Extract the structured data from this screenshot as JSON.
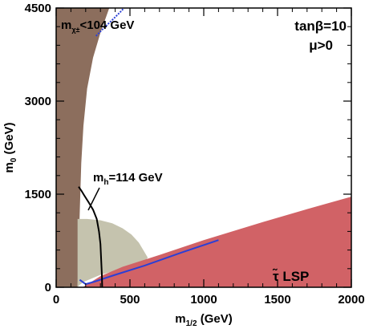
{
  "chart_data": {
    "type": "area",
    "title": "",
    "xlabel": "m",
    "xlabel_sub": "1/2",
    "xlabel_unit": " (GeV)",
    "ylabel": "m",
    "ylabel_sub": "0",
    "ylabel_unit": " (GeV)",
    "xlim": [
      0,
      2000
    ],
    "ylim": [
      0,
      4500
    ],
    "x_ticks": [
      0,
      500,
      1000,
      1500,
      2000
    ],
    "y_ticks": [
      0,
      1500,
      3000,
      4500
    ],
    "grid": false,
    "colors": {
      "chargino_excluded": "#8c6e5d",
      "higgs_excluded": "#c5c3ae",
      "stau_lsp": "#d16266",
      "wmap_band": "#2b3fd6",
      "mh_line": "#000000",
      "frame": "#000000"
    },
    "regions": [
      {
        "name": "chargino_excluded",
        "boundary": [
          [
            0,
            0
          ],
          [
            145,
            0
          ],
          [
            150,
            400
          ],
          [
            160,
            1200
          ],
          [
            170,
            2000
          ],
          [
            185,
            2600
          ],
          [
            210,
            3200
          ],
          [
            250,
            3700
          ],
          [
            300,
            4100
          ],
          [
            360,
            4500
          ],
          [
            0,
            4500
          ]
        ]
      },
      {
        "name": "higgs_excluded",
        "boundary": [
          [
            145,
            0
          ],
          [
            145,
            1100
          ],
          [
            210,
            1100
          ],
          [
            300,
            1080
          ],
          [
            380,
            1030
          ],
          [
            450,
            950
          ],
          [
            510,
            850
          ],
          [
            560,
            720
          ],
          [
            590,
            600
          ],
          [
            620,
            480
          ],
          [
            600,
            380
          ],
          [
            450,
            300
          ],
          [
            300,
            200
          ],
          [
            190,
            90
          ],
          [
            160,
            40
          ]
        ]
      },
      {
        "name": "stau_lsp",
        "boundary": [
          [
            180,
            0
          ],
          [
            2000,
            0
          ],
          [
            2000,
            1460
          ],
          [
            1700,
            1260
          ],
          [
            1400,
            1050
          ],
          [
            1000,
            760
          ],
          [
            700,
            520
          ],
          [
            450,
            330
          ],
          [
            300,
            180
          ],
          [
            220,
            60
          ]
        ]
      }
    ],
    "lines": [
      {
        "name": "wmap_band_lower",
        "points": [
          [
            160,
            120
          ],
          [
            200,
            50
          ],
          [
            260,
            90
          ],
          [
            400,
            200
          ],
          [
            600,
            350
          ],
          [
            850,
            560
          ],
          [
            1100,
            760
          ]
        ]
      },
      {
        "name": "wmap_band_upper",
        "points": [
          [
            270,
            4050
          ],
          [
            320,
            4170
          ],
          [
            390,
            4330
          ],
          [
            440,
            4450
          ],
          [
            460,
            4500
          ]
        ]
      },
      {
        "name": "mh_114",
        "points": [
          [
            152,
            1620
          ],
          [
            170,
            1560
          ],
          [
            190,
            1480
          ],
          [
            220,
            1370
          ],
          [
            250,
            1250
          ],
          [
            275,
            1100
          ],
          [
            290,
            900
          ],
          [
            300,
            700
          ],
          [
            305,
            450
          ],
          [
            310,
            200
          ],
          [
            312,
            0
          ]
        ]
      }
    ],
    "annotations": {
      "chargino_label": "m",
      "chargino_sub": "χ±",
      "chargino_value": "<104 GeV",
      "mh_label": "m",
      "mh_sub": "h",
      "mh_value": "=114 GeV",
      "tanb": "tanβ=10",
      "mu": "μ>0",
      "lsp_tilde": "τ̃",
      "lsp_label": " LSP"
    }
  }
}
